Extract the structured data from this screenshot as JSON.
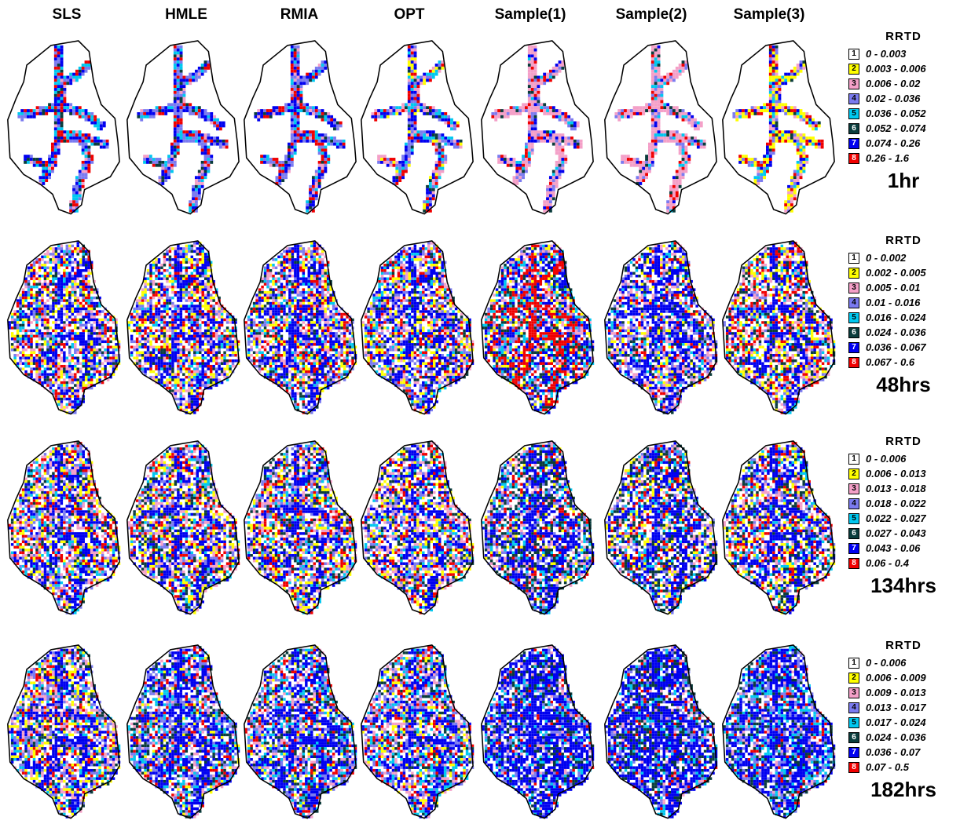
{
  "columns": [
    "SLS",
    "HMLE",
    "RMIA",
    "OPT",
    "Sample(1)",
    "Sample(2)",
    "Sample(3)"
  ],
  "class_colors": [
    "#ffffff",
    "#ffff00",
    "#f4a0c8",
    "#7b7bf0",
    "#00c8f0",
    "#0a3c3c",
    "#0000f0",
    "#f00000"
  ],
  "rows": [
    {
      "time": "1hr",
      "legend_title": "RRTD",
      "legend": [
        {
          "cls": "1",
          "range": "0 - 0.003"
        },
        {
          "cls": "2",
          "range": "0.003 - 0.006"
        },
        {
          "cls": "3",
          "range": "0.006 - 0.02"
        },
        {
          "cls": "4",
          "range": "0.02 - 0.036"
        },
        {
          "cls": "5",
          "range": "0.036 - 0.052"
        },
        {
          "cls": "6",
          "range": "0.052 - 0.074"
        },
        {
          "cls": "7",
          "range": "0.074 - 0.26"
        },
        {
          "cls": "8",
          "range": "0.26 - 1.6"
        }
      ]
    },
    {
      "time": "48hrs",
      "legend_title": "RRTD",
      "legend": [
        {
          "cls": "1",
          "range": "0 - 0.002"
        },
        {
          "cls": "2",
          "range": "0.002 - 0.005"
        },
        {
          "cls": "3",
          "range": "0.005 - 0.01"
        },
        {
          "cls": "4",
          "range": "0.01 - 0.016"
        },
        {
          "cls": "5",
          "range": "0.016 - 0.024"
        },
        {
          "cls": "6",
          "range": "0.024 - 0.036"
        },
        {
          "cls": "7",
          "range": "0.036 - 0.067"
        },
        {
          "cls": "8",
          "range": "0.067 - 0.6"
        }
      ]
    },
    {
      "time": "134hrs",
      "legend_title": "RRTD",
      "legend": [
        {
          "cls": "1",
          "range": "0 - 0.006"
        },
        {
          "cls": "2",
          "range": "0.006 - 0.013"
        },
        {
          "cls": "3",
          "range": "0.013 - 0.018"
        },
        {
          "cls": "4",
          "range": "0.018 - 0.022"
        },
        {
          "cls": "5",
          "range": "0.022 - 0.027"
        },
        {
          "cls": "6",
          "range": "0.027 - 0.043"
        },
        {
          "cls": "7",
          "range": "0.043 - 0.06"
        },
        {
          "cls": "8",
          "range": "0.06 - 0.4"
        }
      ]
    },
    {
      "time": "182hrs",
      "legend_title": "RRTD",
      "legend": [
        {
          "cls": "1",
          "range": "0 - 0.006"
        },
        {
          "cls": "2",
          "range": "0.006 - 0.009"
        },
        {
          "cls": "3",
          "range": "0.009 - 0.013"
        },
        {
          "cls": "4",
          "range": "0.013 - 0.017"
        },
        {
          "cls": "5",
          "range": "0.017 - 0.024"
        },
        {
          "cls": "6",
          "range": "0.024 - 0.036"
        },
        {
          "cls": "7",
          "range": "0.036 - 0.07"
        },
        {
          "cls": "8",
          "range": "0.07 - 0.5"
        }
      ]
    }
  ]
}
